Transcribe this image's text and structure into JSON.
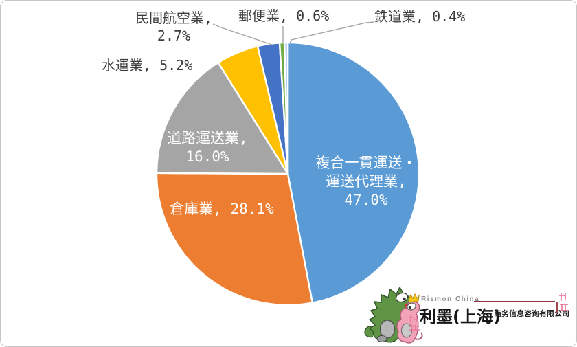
{
  "chart_data": {
    "type": "pie",
    "title": "",
    "unit": "%",
    "start_angle_deg": 0,
    "direction": "clockwise",
    "legend": "none",
    "labels_on_chart": true,
    "slices": [
      {
        "label": "複合一貫運送・運送代理業",
        "value": 47.0,
        "color": "#5B9BD5"
      },
      {
        "label": "倉庫業",
        "value": 28.1,
        "color": "#ED7D31"
      },
      {
        "label": "道路運送業",
        "value": 16.0,
        "color": "#A5A5A5"
      },
      {
        "label": "水運業",
        "value": 5.2,
        "color": "#FFC000"
      },
      {
        "label": "民間航空業",
        "value": 2.7,
        "color": "#4472C4"
      },
      {
        "label": "郵便業",
        "value": 0.6,
        "color": "#70AD47"
      },
      {
        "label": "鉄道業",
        "value": 0.4,
        "color": "#9DC3E6"
      }
    ]
  },
  "labels": {
    "fukugo_line1": "複合一貫運送・",
    "fukugo_line2": "運送代理業, ",
    "fukugo_line3": "47.0%",
    "soko": "倉庫業, 28.1%",
    "doro_line1": "道路運送業, ",
    "doro_line2": "16.0%",
    "suiun": "水運業, 5.2%",
    "minkan_line1": "民間航空業, ",
    "minkan_line2": "2.7%",
    "yubin": "郵便業, 0.6%",
    "tetsudo": "鉄道業, 0.4%"
  },
  "logo": {
    "brand_en": "Rismon China",
    "brand_cn": "利墨(上海)",
    "brand_suffix": "商务信息咨询有限公司",
    "rule_color": "#93333f",
    "seal_color": "#e8799b",
    "dino_green": "#5e9444",
    "dino_pink": "#f2a3b8",
    "crown_yellow": "#f5c518"
  },
  "colors": {
    "leader_line": "#a6a6a6",
    "label_text": "#3d3d3d",
    "inside_label_text": "#ffffff",
    "background": "#ffffff",
    "frame_border": "#c6c6c6"
  }
}
